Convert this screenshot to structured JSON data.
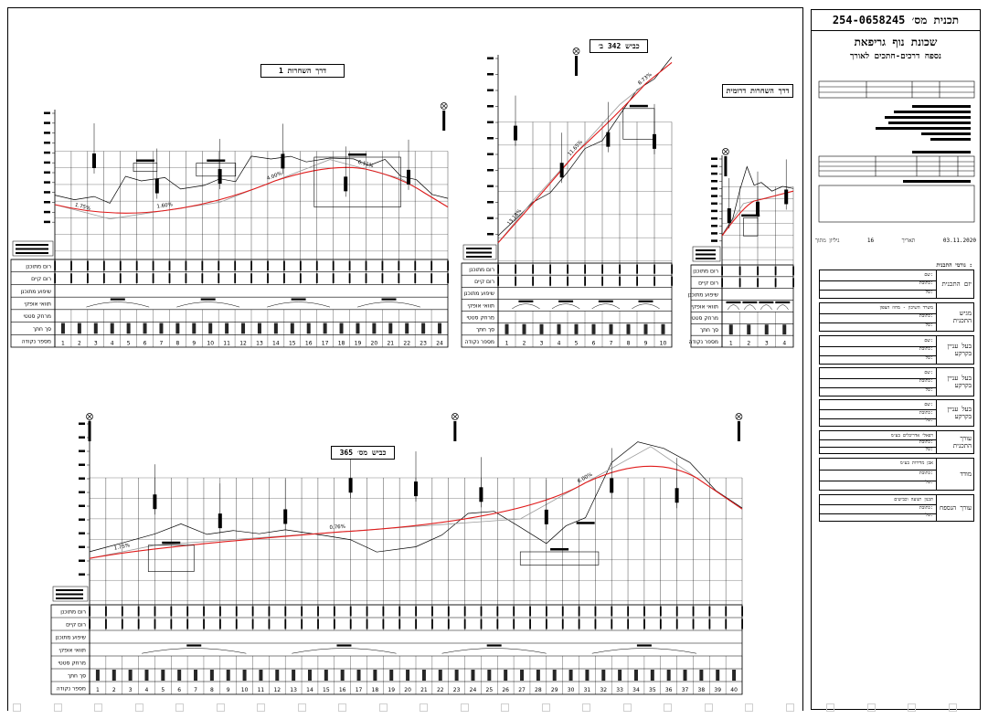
{
  "title_block": {
    "plan_number": "254-0658245 תכנית מס׳",
    "project_title": "שכונת נוף גריפאת",
    "subtitle": "נספח דרכים-חתכים לאורך",
    "date": "03.11.2020",
    "date_label": "תאריך",
    "sheet_label": "גיליון מתוך",
    "sheet_number": "16",
    "owner_block_label": "גורמי התכנית :",
    "blocks": [
      {
        "label": "יזם התכנית",
        "rows": [
          "שם:",
          "כתובת:",
          "טל:"
        ]
      },
      {
        "label": "מגיש התכנית",
        "rows": [
          "משרד השיכון - מחוז הצפון",
          "כתובת:",
          "טל:"
        ]
      },
      {
        "label": "בעל עניין בקרקע",
        "rows": [
          "שם:",
          "כתובת:",
          "טל:"
        ]
      },
      {
        "label": "בעל עניין בקרקע",
        "rows": [
          "שם:",
          "כתובת:",
          "טל:"
        ]
      },
      {
        "label": "בעל עניין בקרקע",
        "rows": [
          "שם:",
          "כתובת:",
          "טל:"
        ]
      },
      {
        "label": "עורך התכנית",
        "rows": [
          "רפאלי אדריכלים בע״מ",
          "כתובת:",
          "טל:"
        ]
      },
      {
        "label": "מודד",
        "rows": [
          "אבן מדידות בע״מ",
          "כתובת:",
          "טל:"
        ]
      },
      {
        "label": "עורך הנספח",
        "rows": [
          "תכנון תנועה וכבישים",
          "כתובת:",
          "טל:"
        ]
      }
    ]
  },
  "profiles": [
    {
      "title": "דרך השחרות 1"
    },
    {
      "title": "כביש 342 ב׳"
    },
    {
      "title": "דרך השחרות דרומית"
    },
    {
      "title": "כביש מס׳ 365"
    }
  ],
  "row_labels": [
    "רום מתוכנן",
    "רום קיים",
    "שיפוע מתוכנן",
    "תוואי אופקי",
    "מרחק סטטי",
    "סך חתך",
    "מספר נקודה"
  ],
  "grade_labels": {
    "p1": [
      "1.75%",
      "1.60%",
      "4.00%",
      "6.11%"
    ],
    "p2": [
      "13.18%",
      "11.65%",
      "8.73%"
    ],
    "p4": [
      "1.75%",
      "0.76%",
      "6.00%"
    ]
  },
  "station_numbers": {
    "p1": [
      "1",
      "2",
      "3",
      "4",
      "5",
      "6",
      "7",
      "8",
      "9",
      "10",
      "11",
      "12",
      "13",
      "14",
      "15",
      "16",
      "17",
      "18",
      "19",
      "20",
      "21",
      "22",
      "23",
      "24"
    ],
    "p2": [
      "1",
      "2",
      "3",
      "4",
      "5",
      "6",
      "7",
      "8",
      "9",
      "10"
    ],
    "p3": [
      "1",
      "2",
      "3",
      "4"
    ],
    "p4": [
      "1",
      "2",
      "3",
      "4",
      "5",
      "6",
      "7",
      "8",
      "9",
      "10",
      "11",
      "12",
      "13",
      "14",
      "15",
      "16",
      "17",
      "18",
      "19",
      "20",
      "21",
      "22",
      "23",
      "24",
      "25",
      "26",
      "27",
      "28",
      "29",
      "30",
      "31",
      "32",
      "33",
      "34",
      "35",
      "36",
      "37",
      "38",
      "39",
      "40"
    ]
  }
}
